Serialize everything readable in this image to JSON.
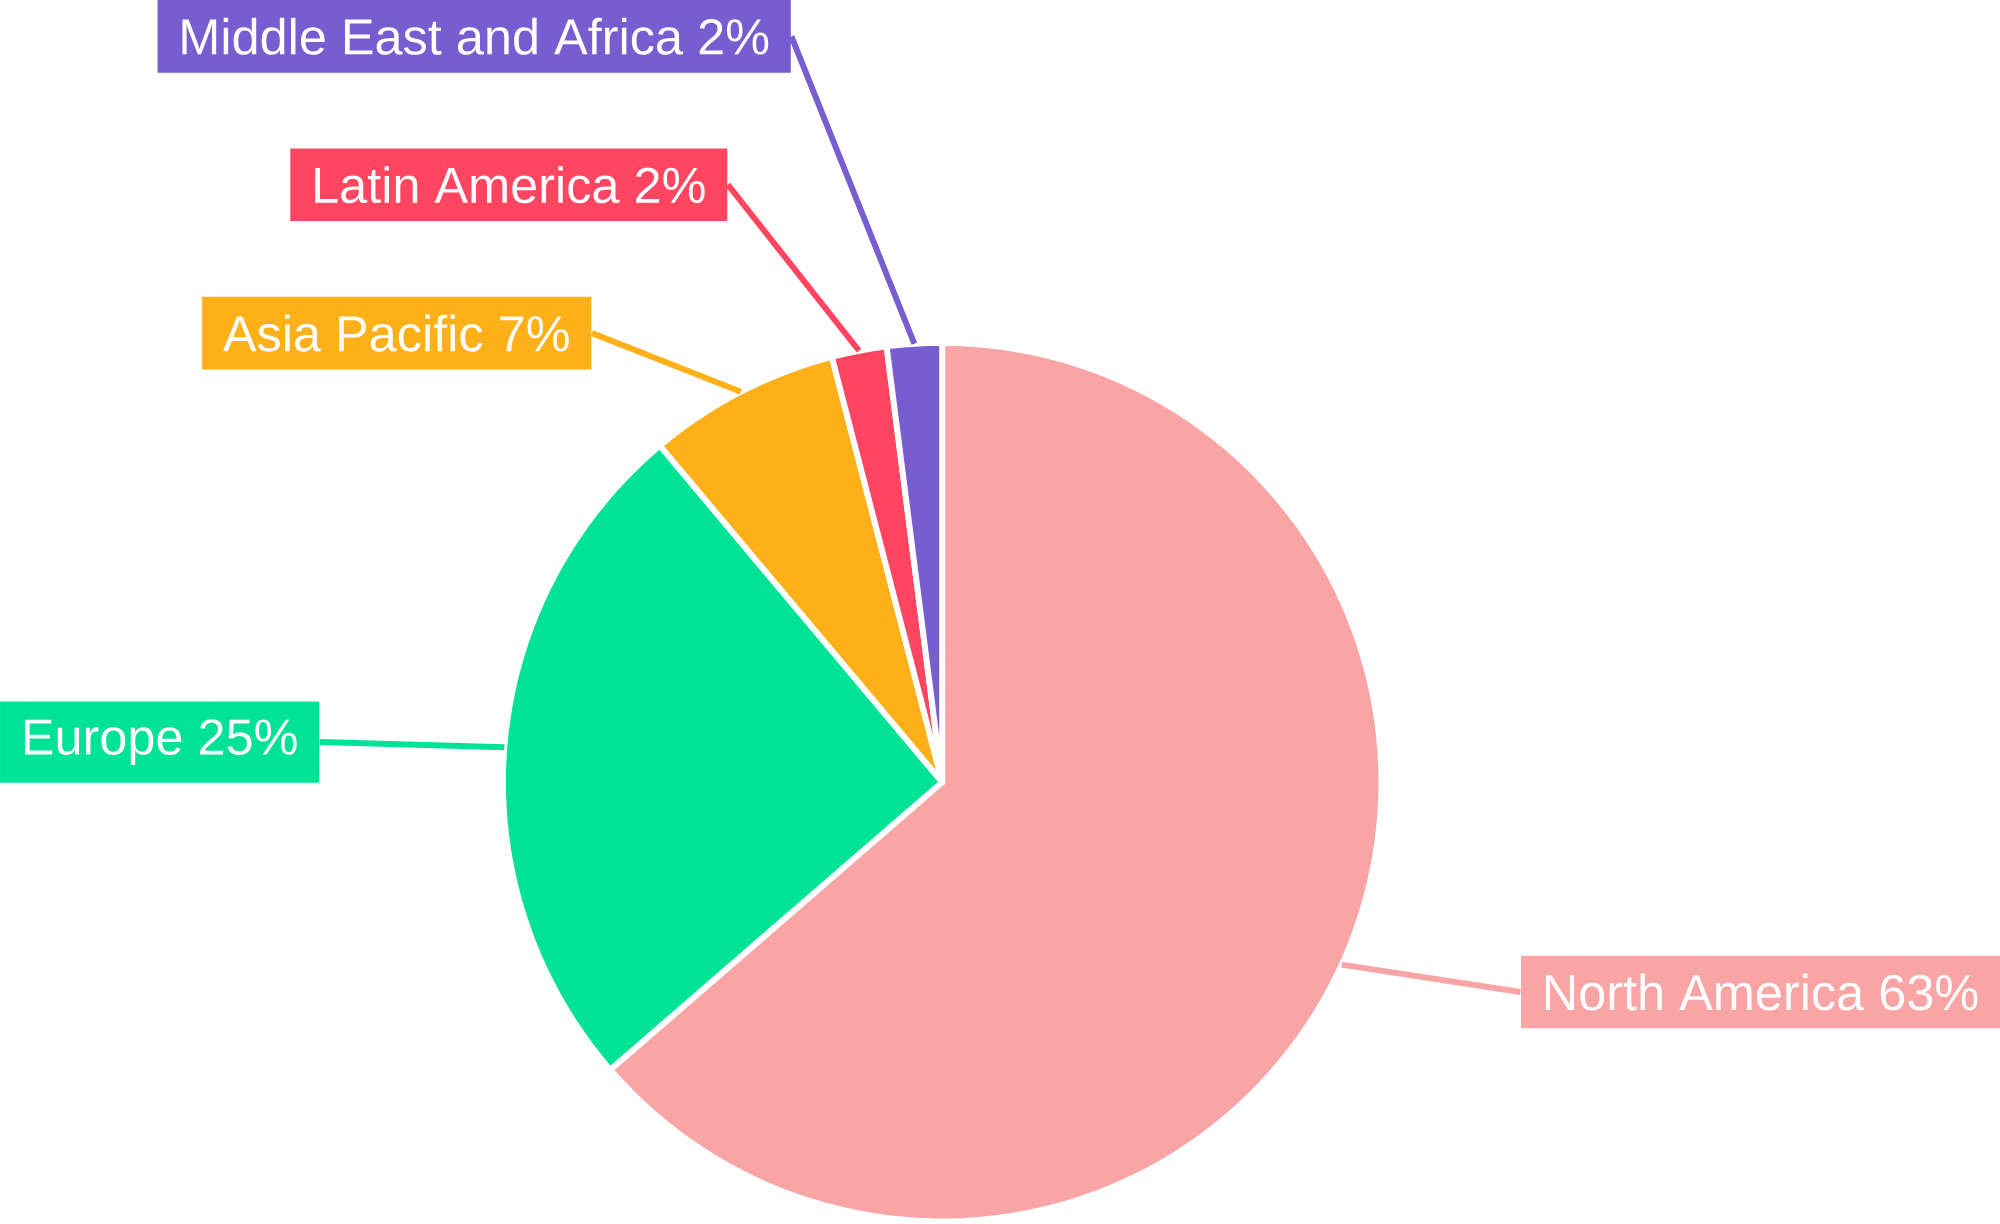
{
  "chart_data": {
    "type": "pie",
    "categories": [
      "North America",
      "Europe",
      "Asia Pacific",
      "Latin America",
      "Middle East and Africa"
    ],
    "values": [
      63,
      25,
      7,
      2,
      2
    ],
    "value_labels": [
      "63%",
      "25%",
      "7%",
      "2%",
      "2%"
    ],
    "colors": [
      "#f9a5a5",
      "#00e396",
      "#feb019",
      "#ff4560",
      "#775dd0"
    ]
  }
}
